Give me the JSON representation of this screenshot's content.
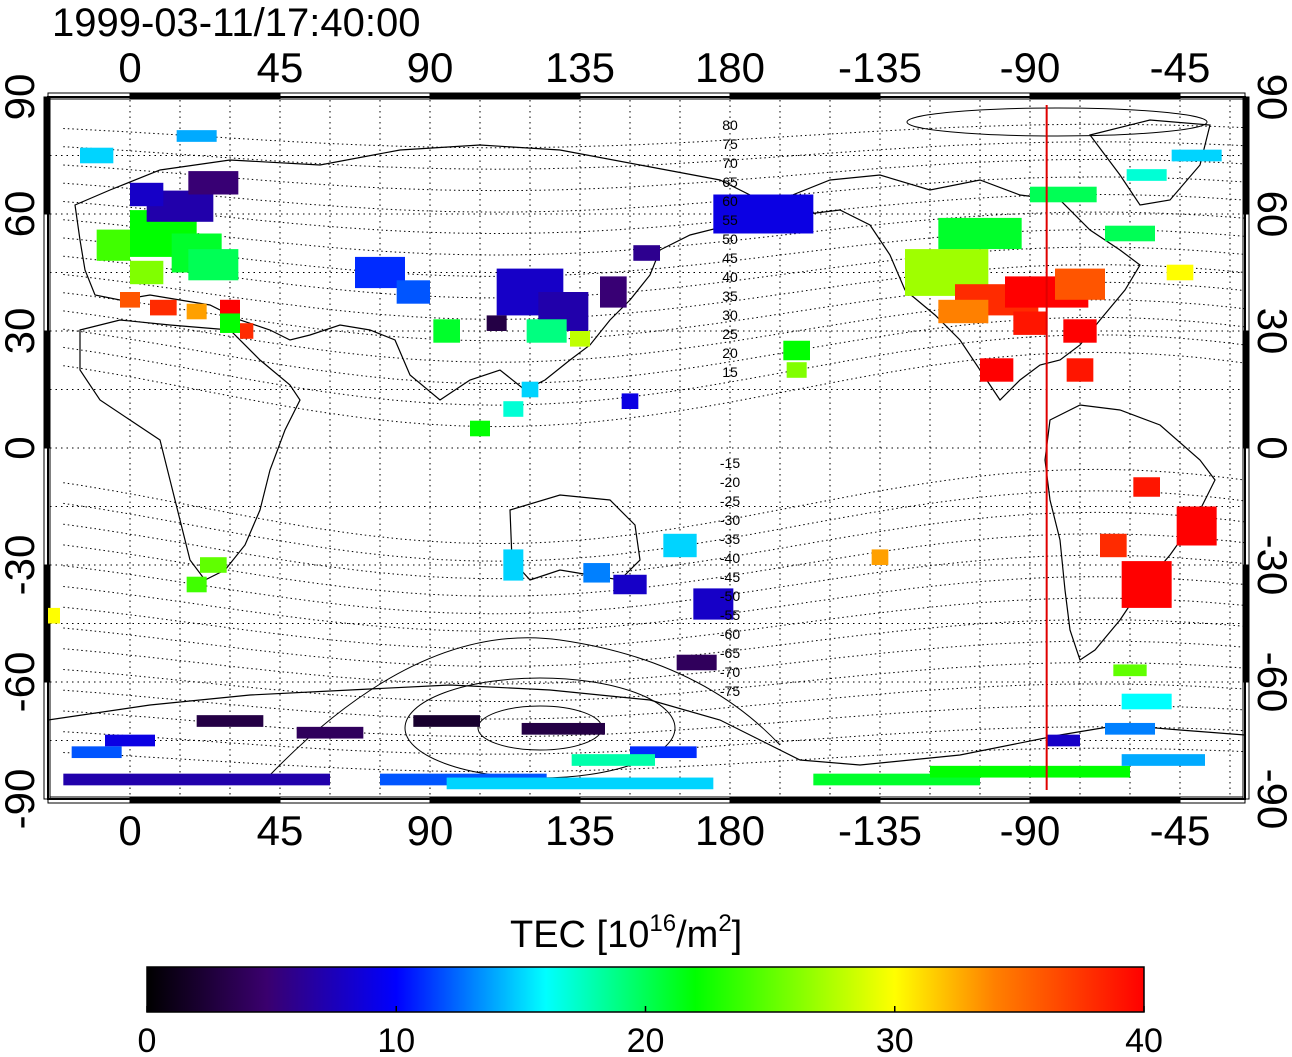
{
  "title": "1999-03-11/17:40:00",
  "axes": {
    "lon_ticks": [
      "0",
      "45",
      "90",
      "135",
      "180",
      "-135",
      "-90",
      "-45"
    ],
    "lat_ticks": [
      "90",
      "60",
      "30",
      "0",
      "-30",
      "-60",
      "-90"
    ],
    "lon_range": [
      -20,
      335
    ],
    "lat_range": [
      -95,
      95
    ]
  },
  "contour_labels": {
    "north": [
      "80",
      "75",
      "70",
      "65",
      "60",
      "55",
      "50",
      "45",
      "40",
      "35",
      "30",
      "25",
      "20",
      "15"
    ],
    "south": [
      "-15",
      "-20",
      "-25",
      "-30",
      "-35",
      "-40",
      "-45",
      "-50",
      "-55",
      "-60",
      "-65",
      "-70",
      "-75"
    ]
  },
  "terminator_longitude": -85,
  "colorbar": {
    "label_main": "TEC  [10",
    "label_sup1": "16",
    "label_mid": "/m",
    "label_sup2": "2",
    "label_end": "]",
    "ticks": [
      "0",
      "10",
      "20",
      "30",
      "40"
    ],
    "range": [
      0,
      40
    ]
  },
  "colors": {
    "terminator": "#e00000",
    "scale": [
      "#000000",
      "#3a006e",
      "#0000ff",
      "#00ffff",
      "#00ff00",
      "#ffff00",
      "#ff8000",
      "#ff0000"
    ]
  }
}
